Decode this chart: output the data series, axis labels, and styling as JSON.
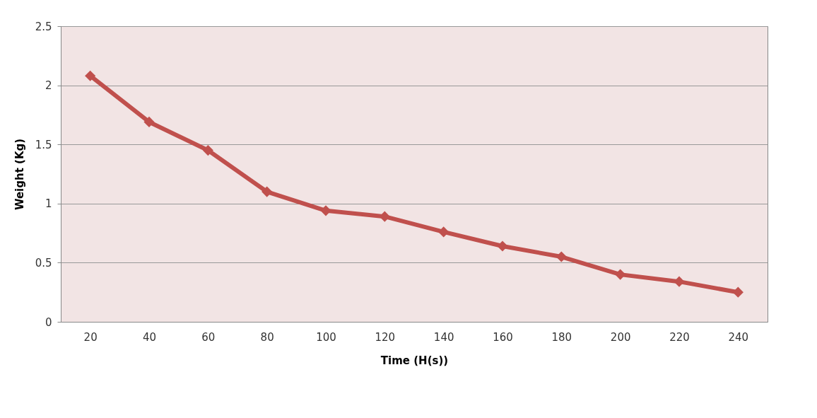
{
  "chart_data": {
    "type": "line",
    "xlabel": "Time (H(s))",
    "ylabel": "Weight (Kg)",
    "categories": [
      "20",
      "40",
      "60",
      "80",
      "100",
      "120",
      "140",
      "160",
      "180",
      "200",
      "220",
      "240"
    ],
    "series": [
      {
        "color": "#c0504d",
        "values": [
          2.08,
          1.69,
          1.45,
          1.1,
          0.94,
          0.89,
          0.76,
          0.64,
          0.55,
          0.4,
          0.34,
          0.25
        ]
      }
    ],
    "ylim": [
      0,
      2.5
    ],
    "yticks": [
      0,
      0.5,
      1,
      1.5,
      2,
      2.5
    ],
    "grid": "y",
    "marker": "diamond",
    "line_style": "solid"
  }
}
